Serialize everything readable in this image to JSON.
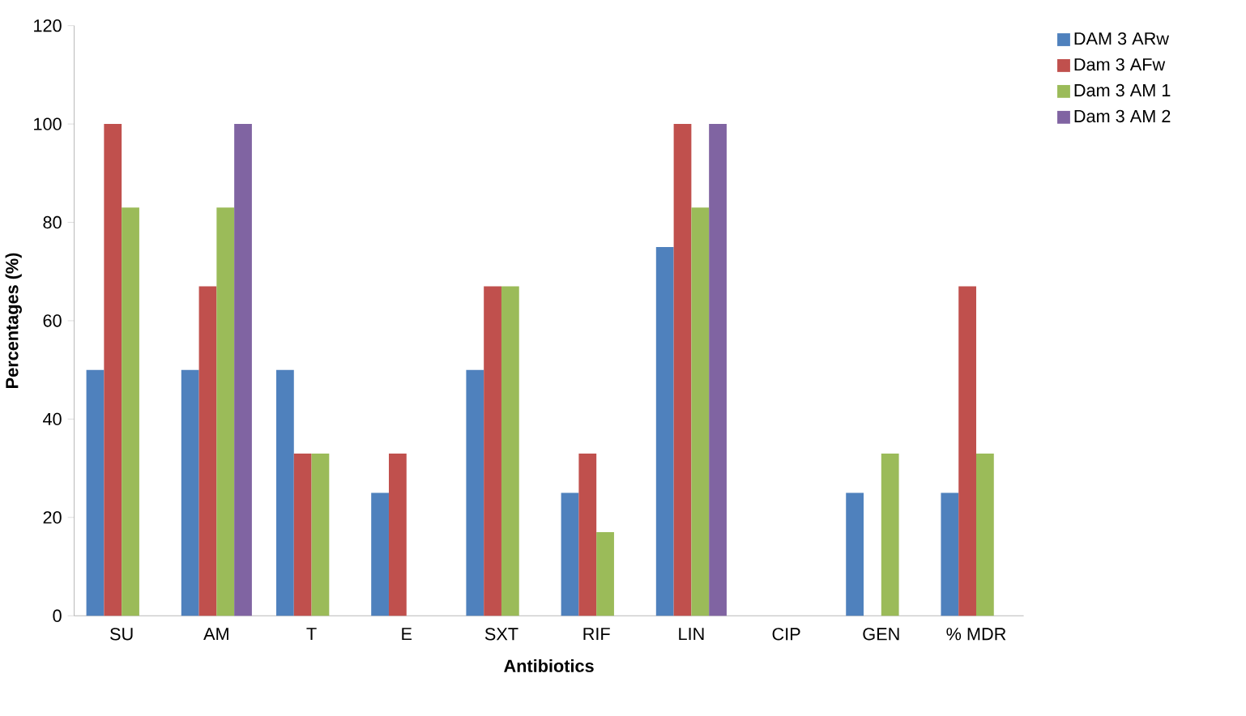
{
  "chart_data": {
    "type": "bar",
    "xlabel": "Antibiotics",
    "ylabel": "Percentages (%)",
    "categories": [
      "SU",
      "AM",
      "T",
      "E",
      "SXT",
      "RIF",
      "LIN",
      "CIP",
      "GEN",
      "% MDR"
    ],
    "series": [
      {
        "name": "DAM 3 ARw",
        "color": "#4f81bd",
        "values": [
          50,
          50,
          50,
          25,
          50,
          25,
          75,
          0,
          25,
          25
        ]
      },
      {
        "name": "Dam 3 AFw",
        "color": "#c0504d",
        "values": [
          100,
          67,
          33,
          33,
          67,
          33,
          100,
          0,
          0,
          67
        ]
      },
      {
        "name": "Dam 3 AM 1",
        "color": "#9bbb59",
        "values": [
          83,
          83,
          33,
          0,
          67,
          17,
          83,
          0,
          33,
          33
        ]
      },
      {
        "name": "Dam 3 AM 2",
        "color": "#8064a2",
        "values": [
          0,
          100,
          0,
          0,
          0,
          0,
          100,
          0,
          0,
          0
        ]
      }
    ],
    "ylim": [
      0,
      120
    ],
    "yticks": [
      0,
      20,
      40,
      60,
      80,
      100,
      120
    ],
    "grid": false,
    "legend": "right"
  }
}
